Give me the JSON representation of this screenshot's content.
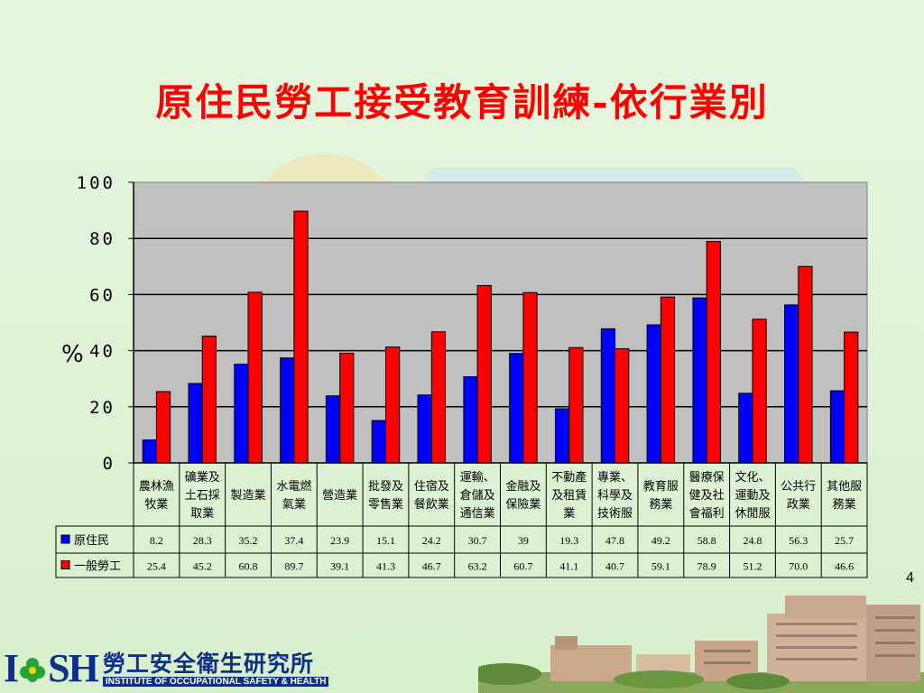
{
  "title": "原住民勞工接受教育訓練-依行業別",
  "page_number": "4",
  "logo": {
    "letters_left": "I",
    "letters_right": "SH",
    "name_cn": "勞工安全衛生研究所",
    "name_en": "INSTITUTE OF OCCUPATIONAL SAFETY & HEALTH"
  },
  "colors": {
    "series1": "#0000ff",
    "series2": "#ff0000",
    "plot_bg": "#c0c0c0",
    "title": "#ff0000"
  },
  "chart_data": {
    "type": "bar",
    "title": "原住民勞工接受教育訓練-依行業別",
    "ylabel": "%",
    "xlabel": "",
    "ylim": [
      0,
      100
    ],
    "yticks": [
      "0",
      "20",
      "40",
      "60",
      "80",
      "100"
    ],
    "grid": true,
    "categories": [
      [
        "農林漁",
        "牧業"
      ],
      [
        "礦業及",
        "土石採",
        "取業"
      ],
      [
        "製造業"
      ],
      [
        "水電燃",
        "氣業"
      ],
      [
        "營造業"
      ],
      [
        "批發及",
        "零售業"
      ],
      [
        "住宿及",
        "餐飲業"
      ],
      [
        "運輸、",
        "倉儲及",
        "通信業"
      ],
      [
        "金融及",
        "保險業"
      ],
      [
        "不動產",
        "及租賃",
        "業"
      ],
      [
        "專業、",
        "科學及",
        "技術服"
      ],
      [
        "教育服",
        "務業"
      ],
      [
        "醫療保",
        "健及社",
        "會福利"
      ],
      [
        "文化、",
        "運動及",
        "休閒服"
      ],
      [
        "公共行",
        "政業"
      ],
      [
        "其他服",
        "務業"
      ]
    ],
    "series": [
      {
        "name": "原住民",
        "values": [
          8.2,
          28.3,
          35.2,
          37.4,
          23.9,
          15.1,
          24.2,
          30.7,
          39,
          19.3,
          47.8,
          49.2,
          58.8,
          24.8,
          56.3,
          25.7
        ],
        "labels": [
          "8.2",
          "28.3",
          "35.2",
          "37.4",
          "23.9",
          "15.1",
          "24.2",
          "30.7",
          "39",
          "19.3",
          "47.8",
          "49.2",
          "58.8",
          "24.8",
          "56.3",
          "25.7"
        ]
      },
      {
        "name": "一般勞工",
        "values": [
          25.4,
          45.2,
          60.8,
          89.7,
          39.1,
          41.3,
          46.7,
          63.2,
          60.7,
          41.1,
          40.7,
          59.1,
          78.9,
          51.2,
          70.0,
          46.6
        ],
        "labels": [
          "25.4",
          "45.2",
          "60.8",
          "89.7",
          "39.1",
          "41.3",
          "46.7",
          "63.2",
          "60.7",
          "41.1",
          "40.7",
          "59.1",
          "78.9",
          "51.2",
          "70.0",
          "46.6"
        ]
      }
    ]
  }
}
